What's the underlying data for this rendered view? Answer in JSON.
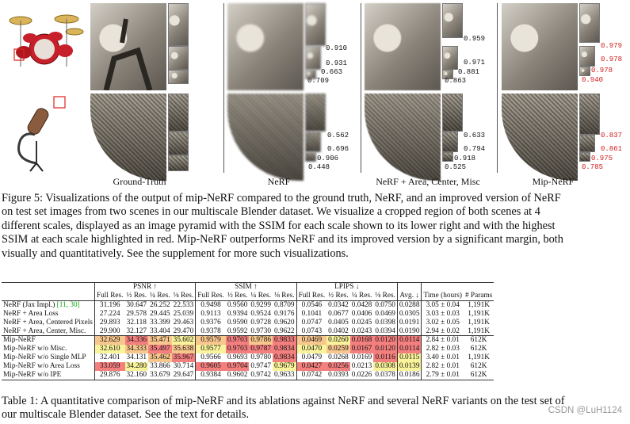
{
  "figure": {
    "columns": [
      {
        "label": "Ground-Truth",
        "ssim_top": [],
        "ssim_bottom": []
      },
      {
        "label": "NeRF",
        "ssim_top": [
          "0.910",
          "0.931",
          "0.663",
          "0.709"
        ],
        "ssim_bottom": [
          "0.562",
          "0.696",
          "0.906",
          "0.448"
        ],
        "best_top": [],
        "best_bottom": []
      },
      {
        "label": "NeRF + Area, Center, Misc",
        "ssim_top": [
          "0.959",
          "0.971",
          "0.881",
          "0.863"
        ],
        "ssim_bottom": [
          "0.633",
          "0.794",
          "0.918",
          "0.525"
        ]
      },
      {
        "label": "Mip-NeRF",
        "ssim_top": [
          "0.979",
          "0.978",
          "0.978",
          "0.940"
        ],
        "ssim_bottom": [
          "0.837",
          "0.861",
          "0.975",
          "0.785"
        ]
      }
    ],
    "best_color": "#d21c1c"
  },
  "caption1": {
    "line1": "Figure 5: Visualizations of the output of mip-NeRF compared to the ground truth, NeRF, and an improved version of NeRF",
    "line2": "on test set images from two scenes in our multiscale Blender dataset.  We visualize a cropped region of both scenes at 4",
    "line3": "different scales, displayed as an image pyramid with the SSIM for each scale shown to its lower right and with the highest",
    "line4": "SSIM at each scale highlighted in red. Mip-NeRF outperforms NeRF and its improved version by a significant margin, both",
    "line5": "visually and quantitatively. See the supplement for more such visualizations."
  },
  "table": {
    "groups": {
      "psnr": "PSNR ↑",
      "ssim": "SSIM ↑",
      "lpips": "LPIPS ↓"
    },
    "subheaders": [
      "Full Res.",
      "½ Res.",
      "¼ Res.",
      "⅛ Res."
    ],
    "avg": "Avg. ↓",
    "time": "Time (hours)",
    "params": "# Params",
    "rows": [
      {
        "method": "NeRF (Jax Impl.) ",
        "cite": "[11, 30]",
        "v": [
          "31.196",
          "30.647",
          "26.252",
          "22.533",
          "0.9498",
          "0.9560",
          "0.9299",
          "0.8709",
          "0.0546",
          "0.0342",
          "0.0428",
          "0.0750",
          "0.0288"
        ],
        "time": "3.05 ± 0.04",
        "params": "1,191K"
      },
      {
        "method": "NeRF + Area Loss",
        "v": [
          "27.224",
          "29.578",
          "29.445",
          "25.039",
          "0.9113",
          "0.9394",
          "0.9524",
          "0.9176",
          "0.1041",
          "0.0677",
          "0.0406",
          "0.0469",
          "0.0305"
        ],
        "time": "3.03 ± 0.03",
        "params": "1,191K"
      },
      {
        "method": "NeRF + Area, Centered Pixels",
        "v": [
          "29.893",
          "32.118",
          "33.399",
          "29.463",
          "0.9376",
          "0.9590",
          "0.9728",
          "0.9620",
          "0.0747",
          "0.0405",
          "0.0245",
          "0.0398",
          "0.0191"
        ],
        "time": "3.02 ± 0.05",
        "params": "1,191K"
      },
      {
        "method": "NeRF + Area, Center, Misc.",
        "v": [
          "29.900",
          "32.127",
          "33.404",
          "29.470",
          "0.9378",
          "0.9592",
          "0.9730",
          "0.9622",
          "0.0743",
          "0.0402",
          "0.0243",
          "0.0394",
          "0.0190"
        ],
        "time": "2.94 ± 0.02",
        "params": "1,191K"
      },
      {
        "method": "Mip-NeRF",
        "v": [
          "32.629",
          "34.336",
          "35.471",
          "35.602",
          "0.9579",
          "0.9703",
          "0.9786",
          "0.9833",
          "0.0469",
          "0.0260",
          "0.0168",
          "0.0120",
          "0.0114"
        ],
        "time": "2.84 ± 0.01",
        "params": "612K"
      },
      {
        "method": "Mip-NeRF w/o Misc.",
        "v": [
          "32.610",
          "34.333",
          "35.497",
          "35.638",
          "0.9577",
          "0.9703",
          "0.9787",
          "0.9834",
          "0.0470",
          "0.0259",
          "0.0167",
          "0.0120",
          "0.0114"
        ],
        "time": "2.82 ± 0.03",
        "params": "612K"
      },
      {
        "method": "Mip-NeRF w/o Single MLP",
        "v": [
          "32.401",
          "34.131",
          "35.462",
          "35.967",
          "0.9566",
          "0.9693",
          "0.9780",
          "0.9834",
          "0.0479",
          "0.0268",
          "0.0169",
          "0.0116",
          "0.0115"
        ],
        "time": "3.40 ± 0.01",
        "params": "1,191K"
      },
      {
        "method": "Mip-NeRF w/o Area Loss",
        "v": [
          "33.059",
          "34.280",
          "33.866",
          "30.714",
          "0.9605",
          "0.9704",
          "0.9747",
          "0.9679",
          "0.0427",
          "0.0256",
          "0.0213",
          "0.0308",
          "0.0139"
        ],
        "time": "2.82 ± 0.01",
        "params": "612K"
      },
      {
        "method": "Mip-NeRF w/o IPE",
        "v": [
          "29.876",
          "32.160",
          "33.679",
          "29.647",
          "0.9384",
          "0.9602",
          "0.9742",
          "0.9633",
          "0.0742",
          "0.0393",
          "0.0226",
          "0.0378",
          "0.0186"
        ],
        "time": "2.79 ± 0.01",
        "params": "612K"
      }
    ]
  },
  "caption2": {
    "line1": "Table 1: A quantitative comparison of mip-NeRF and its ablations against NeRF and several NeRF variants on the test set of",
    "line2": "our multiscale Blender dataset. See the text for details."
  },
  "watermark": "CSDN @LuH1124"
}
